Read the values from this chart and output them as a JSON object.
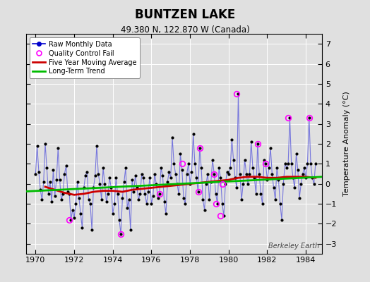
{
  "title": "BUNTZEN LAKE",
  "subtitle": "49.380 N, 122.870 W (Canada)",
  "ylabel": "Temperature Anomaly (°C)",
  "watermark": "Berkeley Earth",
  "xlim": [
    1969.5,
    1984.83
  ],
  "ylim": [
    -3.5,
    7.5
  ],
  "yticks": [
    -3,
    -2,
    -1,
    0,
    1,
    2,
    3,
    4,
    5,
    6,
    7
  ],
  "xticks": [
    1970,
    1972,
    1974,
    1976,
    1978,
    1980,
    1982,
    1984
  ],
  "bg_color": "#e0e0e0",
  "raw_line_color": "#7777dd",
  "raw_dot_color": "#000000",
  "qc_color": "#ff00ff",
  "ma_color": "#cc0000",
  "trend_color": "#00bb00",
  "legend_raw_color": "#0000cc",
  "raw_data_x": [
    1970.0,
    1970.083,
    1970.167,
    1970.25,
    1970.333,
    1970.417,
    1970.5,
    1970.583,
    1970.667,
    1970.75,
    1970.833,
    1970.917,
    1971.0,
    1971.083,
    1971.167,
    1971.25,
    1971.333,
    1971.417,
    1971.5,
    1971.583,
    1971.667,
    1971.75,
    1971.833,
    1971.917,
    1972.0,
    1972.083,
    1972.167,
    1972.25,
    1972.333,
    1972.417,
    1972.5,
    1972.583,
    1972.667,
    1972.75,
    1972.833,
    1972.917,
    1973.0,
    1973.083,
    1973.167,
    1973.25,
    1973.333,
    1973.417,
    1973.5,
    1973.583,
    1973.667,
    1973.75,
    1973.833,
    1973.917,
    1974.0,
    1974.083,
    1974.167,
    1974.25,
    1974.333,
    1974.417,
    1974.5,
    1974.583,
    1974.667,
    1974.75,
    1974.833,
    1974.917,
    1975.0,
    1975.083,
    1975.167,
    1975.25,
    1975.333,
    1975.417,
    1975.5,
    1975.583,
    1975.667,
    1975.75,
    1975.833,
    1975.917,
    1976.0,
    1976.083,
    1976.167,
    1976.25,
    1976.333,
    1976.417,
    1976.5,
    1976.583,
    1976.667,
    1976.75,
    1976.833,
    1976.917,
    1977.0,
    1977.083,
    1977.167,
    1977.25,
    1977.333,
    1977.417,
    1977.5,
    1977.583,
    1977.667,
    1977.75,
    1977.833,
    1977.917,
    1978.0,
    1978.083,
    1978.167,
    1978.25,
    1978.333,
    1978.417,
    1978.5,
    1978.583,
    1978.667,
    1978.75,
    1978.833,
    1978.917,
    1979.0,
    1979.083,
    1979.167,
    1979.25,
    1979.333,
    1979.417,
    1979.5,
    1979.583,
    1979.667,
    1979.75,
    1979.833,
    1979.917,
    1980.0,
    1980.083,
    1980.167,
    1980.25,
    1980.333,
    1980.417,
    1980.5,
    1980.583,
    1980.667,
    1980.75,
    1980.833,
    1980.917,
    1981.0,
    1981.083,
    1981.167,
    1981.25,
    1981.333,
    1981.417,
    1981.5,
    1981.583,
    1981.667,
    1981.75,
    1981.833,
    1981.917,
    1982.0,
    1982.083,
    1982.167,
    1982.25,
    1982.333,
    1982.417,
    1982.5,
    1982.583,
    1982.667,
    1982.75,
    1982.833,
    1982.917,
    1983.0,
    1983.083,
    1983.167,
    1983.25,
    1983.333,
    1983.417,
    1983.5,
    1983.583,
    1983.667,
    1983.75,
    1983.833,
    1983.917,
    1984.0,
    1984.083,
    1984.167,
    1984.25,
    1984.333,
    1984.417,
    1984.5
  ],
  "raw_data_y": [
    0.5,
    1.9,
    0.6,
    -0.3,
    -0.8,
    0.1,
    2.0,
    0.8,
    -0.5,
    0.1,
    -0.9,
    0.7,
    -0.6,
    0.2,
    1.8,
    0.2,
    -0.8,
    -0.5,
    0.5,
    0.9,
    -0.4,
    -0.5,
    -1.8,
    -1.3,
    -1.7,
    -1.0,
    0.1,
    -0.7,
    -1.5,
    -2.2,
    -0.2,
    0.4,
    0.6,
    -0.8,
    -1.0,
    -2.3,
    -0.2,
    0.4,
    1.9,
    0.5,
    0.0,
    -0.8,
    0.8,
    0.0,
    -0.9,
    -0.5,
    0.3,
    -0.2,
    -1.5,
    -1.0,
    0.3,
    -0.5,
    -1.8,
    -2.5,
    -0.7,
    0.1,
    0.8,
    -1.2,
    -0.8,
    -2.3,
    0.2,
    -0.4,
    0.4,
    -0.2,
    -0.8,
    -0.5,
    0.5,
    0.3,
    -0.5,
    -1.0,
    -0.4,
    0.3,
    -1.0,
    -0.6,
    0.5,
    0.0,
    -0.7,
    -0.5,
    0.8,
    0.4,
    -0.9,
    -1.5,
    0.1,
    0.6,
    0.3,
    2.3,
    1.0,
    0.5,
    0.0,
    -0.5,
    1.5,
    0.7,
    -0.7,
    -1.0,
    0.5,
    1.0,
    0.0,
    0.6,
    2.5,
    1.0,
    0.3,
    -0.4,
    1.8,
    0.8,
    -0.8,
    -1.3,
    0.0,
    0.5,
    -0.8,
    0.1,
    1.2,
    0.5,
    -0.5,
    -1.0,
    0.8,
    0.3,
    -1.0,
    -1.6,
    0.0,
    0.6,
    0.5,
    0.8,
    2.2,
    1.2,
    0.3,
    -0.2,
    4.5,
    0.5,
    -0.8,
    0.0,
    1.2,
    0.5,
    0.0,
    0.5,
    2.1,
    0.8,
    0.3,
    -0.5,
    2.0,
    0.5,
    -0.5,
    -1.0,
    1.2,
    1.0,
    0.2,
    0.8,
    1.8,
    0.5,
    -0.2,
    -0.8,
    0.8,
    0.2,
    -1.0,
    -1.8,
    0.0,
    1.0,
    0.8,
    1.0,
    3.3,
    1.0,
    0.3,
    -0.2,
    1.5,
    0.7,
    -0.7,
    0.0,
    0.5,
    0.8,
    0.3,
    1.0,
    3.3,
    1.0,
    0.3,
    0.0,
    1.0
  ],
  "qc_fail_points": [
    [
      1971.75,
      -1.8
    ],
    [
      1974.417,
      -2.5
    ],
    [
      1976.417,
      -0.5
    ],
    [
      1977.583,
      1.0
    ],
    [
      1978.417,
      -0.4
    ],
    [
      1978.5,
      1.8
    ],
    [
      1979.25,
      0.5
    ],
    [
      1979.333,
      -1.0
    ],
    [
      1979.583,
      -1.6
    ],
    [
      1979.667,
      0.0
    ],
    [
      1980.417,
      4.5
    ],
    [
      1981.5,
      2.0
    ],
    [
      1981.917,
      1.0
    ],
    [
      1983.083,
      3.3
    ],
    [
      1984.167,
      3.3
    ]
  ],
  "moving_avg_x": [
    1970.5,
    1971.0,
    1971.5,
    1972.0,
    1972.5,
    1973.0,
    1973.5,
    1974.0,
    1974.5,
    1975.0,
    1975.5,
    1976.0,
    1976.5,
    1977.0,
    1977.5,
    1978.0,
    1978.5,
    1979.0,
    1979.5,
    1980.0,
    1980.5,
    1981.0,
    1981.5,
    1982.0,
    1982.5,
    1983.0,
    1983.5,
    1984.0,
    1984.5
  ],
  "moving_avg_y": [
    -0.15,
    -0.3,
    -0.45,
    -0.55,
    -0.5,
    -0.4,
    -0.35,
    -0.35,
    -0.4,
    -0.3,
    -0.25,
    -0.2,
    -0.15,
    -0.1,
    -0.05,
    0.0,
    0.05,
    0.1,
    0.15,
    0.2,
    0.3,
    0.35,
    0.35,
    0.3,
    0.3,
    0.35,
    0.35,
    0.35,
    0.3
  ],
  "trend_x": [
    1969.5,
    1984.83
  ],
  "trend_y": [
    -0.38,
    0.35
  ]
}
